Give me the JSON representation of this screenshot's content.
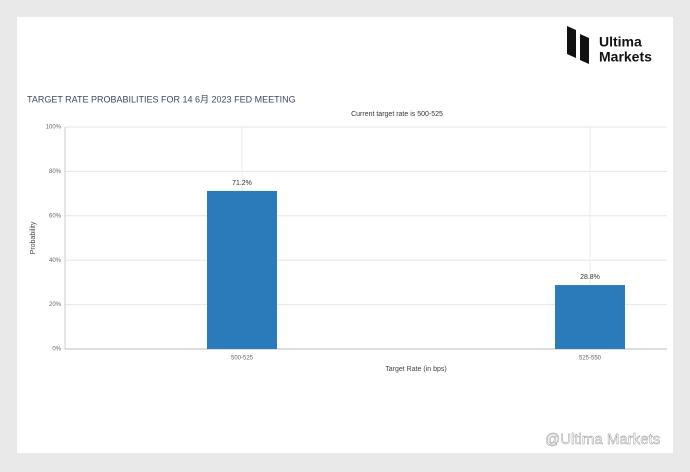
{
  "brand": {
    "line1": "Ultima",
    "line2": "Markets"
  },
  "watermark": "@Ultima Markets",
  "chart_data": {
    "type": "bar",
    "title": "TARGET RATE PROBABILITIES FOR 14 6月 2023 FED MEETING",
    "subtitle": "Current target rate is 500-525",
    "xlabel": "Target Rate (in bps)",
    "ylabel": "Probability",
    "categories": [
      "500-525",
      "525-550"
    ],
    "values": [
      71.2,
      28.8
    ],
    "value_labels": [
      "71.2%",
      "28.8%"
    ],
    "color": "#2b7bba",
    "ylim": [
      0,
      100
    ],
    "yticks": [
      {
        "value": 0,
        "label": "0%"
      },
      {
        "value": 20,
        "label": "20%"
      },
      {
        "value": 40,
        "label": "40%"
      },
      {
        "value": 60,
        "label": "60%"
      },
      {
        "value": 80,
        "label": "80%"
      },
      {
        "value": 100,
        "label": "100%"
      }
    ],
    "grid": true
  }
}
